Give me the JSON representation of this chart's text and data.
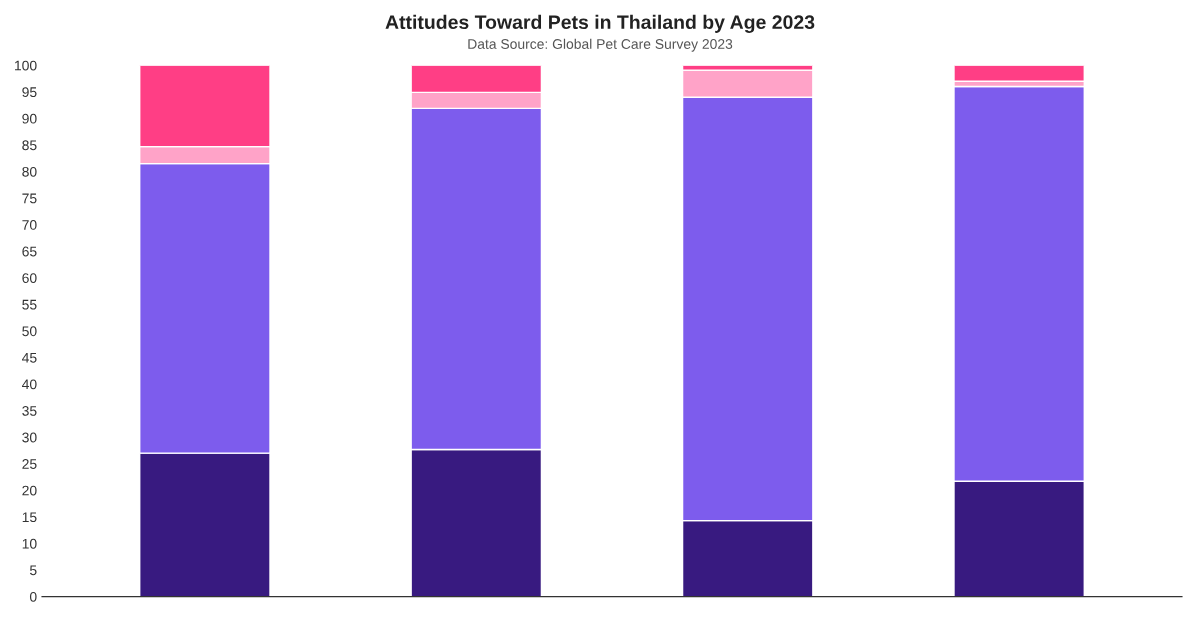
{
  "chart_data": {
    "type": "bar",
    "stacked": true,
    "title": "Attitudes Toward Pets in Thailand by Age 2023",
    "subtitle": "Data Source: Global Pet Care Survey 2023",
    "categories": [
      null,
      null,
      null,
      null
    ],
    "series": [
      {
        "color": "#381a80",
        "values": [
          27.0,
          27.7,
          14.3,
          21.7
        ]
      },
      {
        "color": "#7d5ced",
        "values": [
          54.5,
          64.2,
          79.7,
          74.3
        ]
      },
      {
        "color": "#ffa3c8",
        "values": [
          3.2,
          3.0,
          5.1,
          1.0
        ]
      },
      {
        "color": "#ff3e85",
        "values": [
          15.3,
          5.1,
          0.9,
          3.0
        ]
      }
    ],
    "ylim": [
      0,
      100
    ],
    "yticks": [
      0,
      5,
      10,
      15,
      20,
      25,
      30,
      35,
      40,
      45,
      50,
      55,
      60,
      65,
      70,
      75,
      80,
      85,
      90,
      95,
      100
    ],
    "grid": false
  }
}
